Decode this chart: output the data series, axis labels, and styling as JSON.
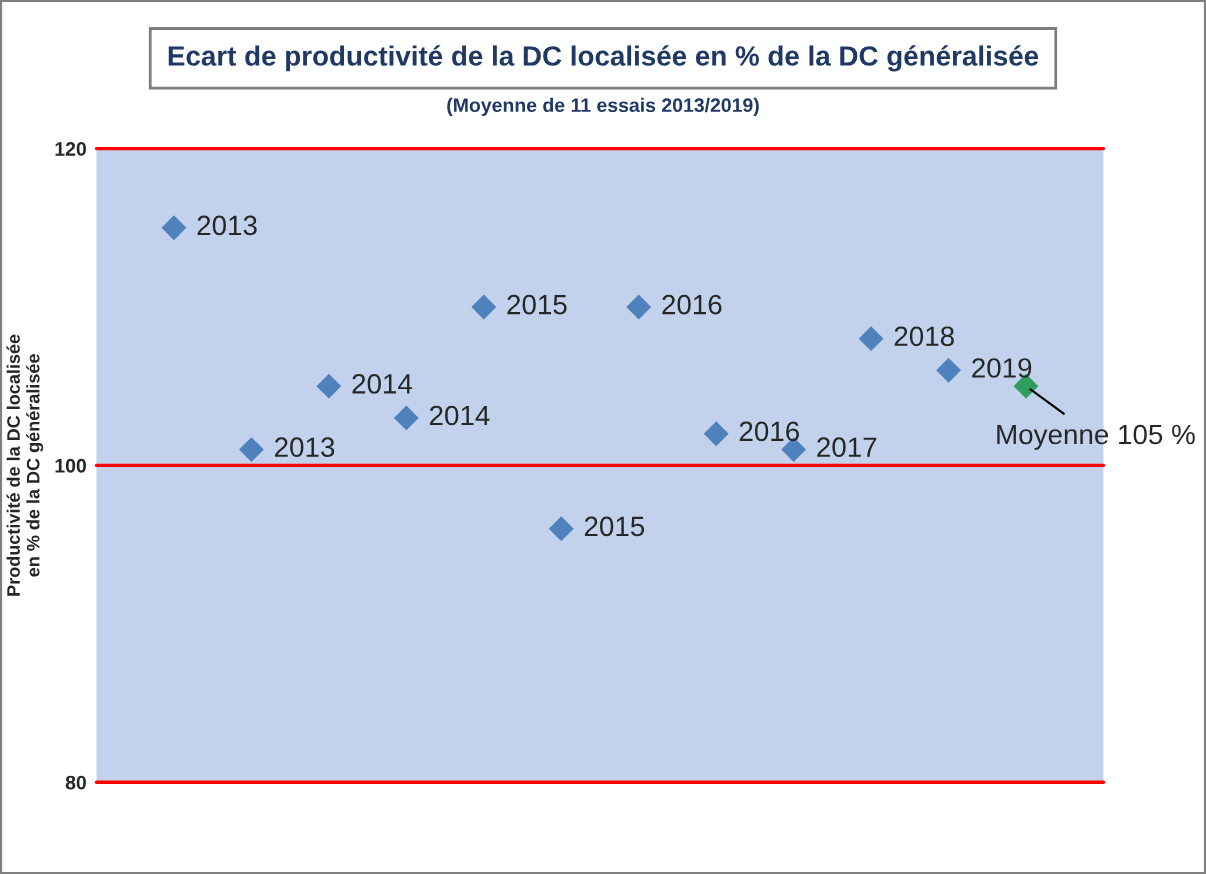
{
  "chart_data": {
    "type": "scatter",
    "title": "Ecart de productivité de la DC localisée en % de la DC généralisée",
    "subtitle": "(Moyenne de 11 essais 2013/2019)",
    "ylabel": "Productivité de la DC localisée\nen % de la DC généralisée",
    "categories": [
      null,
      null,
      null,
      null,
      null,
      null,
      null,
      null,
      null,
      null,
      null,
      null
    ],
    "values": [
      115,
      101,
      105,
      103,
      110,
      96,
      110,
      102,
      101,
      108,
      106,
      105
    ],
    "colors": [
      "#4f81bd",
      "#4f81bd",
      "#4f81bd",
      "#4f81bd",
      "#4f81bd",
      "#4f81bd",
      "#4f81bd",
      "#4f81bd",
      "#4f81bd",
      "#4f81bd",
      "#4f81bd",
      "#2e9e5e"
    ],
    "annotations": [
      "2013",
      "2013",
      "2014",
      "2014",
      "2015",
      "2015",
      "2016",
      "2016",
      "2017",
      "2018",
      "2019",
      "Moyenne 105 %"
    ],
    "ref_lines": [
      {
        "axis": "y",
        "value": 80,
        "color": "#ff0000"
      },
      {
        "axis": "y",
        "value": 100,
        "color": "#ff0000"
      },
      {
        "axis": "y",
        "value": 120,
        "color": "#ff0000"
      }
    ],
    "ylim": [
      80,
      120
    ],
    "yticks": [
      80,
      100,
      120
    ],
    "marker": "diamond",
    "tick_labels": "y"
  }
}
